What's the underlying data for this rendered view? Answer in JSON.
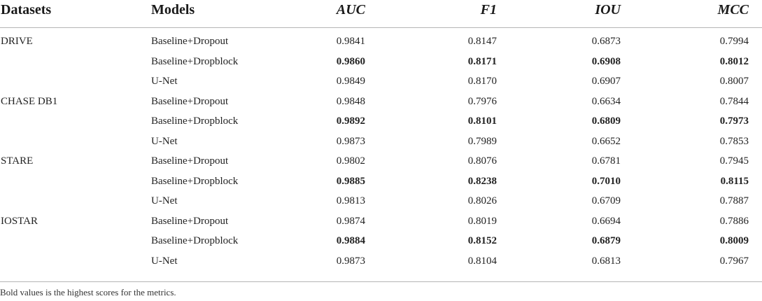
{
  "table": {
    "headers": {
      "datasets": "Datasets",
      "models": "Models",
      "auc": "AUC",
      "f1": "F1",
      "iou": "IOU",
      "mcc": "MCC"
    },
    "rows": [
      {
        "dataset": "DRIVE",
        "model": "Baseline+Dropout",
        "auc": "0.9841",
        "f1": "0.8147",
        "iou": "0.6873",
        "mcc": "0.7994",
        "bold": false
      },
      {
        "dataset": "",
        "model": "Baseline+Dropblock",
        "auc": "0.9860",
        "f1": "0.8171",
        "iou": "0.6908",
        "mcc": "0.8012",
        "bold": true
      },
      {
        "dataset": "",
        "model": "U-Net",
        "auc": "0.9849",
        "f1": "0.8170",
        "iou": "0.6907",
        "mcc": "0.8007",
        "bold": false
      },
      {
        "dataset": "CHASE DB1",
        "model": "Baseline+Dropout",
        "auc": "0.9848",
        "f1": "0.7976",
        "iou": "0.6634",
        "mcc": "0.7844",
        "bold": false
      },
      {
        "dataset": "",
        "model": "Baseline+Dropblock",
        "auc": "0.9892",
        "f1": "0.8101",
        "iou": "0.6809",
        "mcc": "0.7973",
        "bold": true
      },
      {
        "dataset": "",
        "model": "U-Net",
        "auc": "0.9873",
        "f1": "0.7989",
        "iou": "0.6652",
        "mcc": "0.7853",
        "bold": false
      },
      {
        "dataset": "STARE",
        "model": "Baseline+Dropout",
        "auc": "0.9802",
        "f1": "0.8076",
        "iou": "0.6781",
        "mcc": "0.7945",
        "bold": false
      },
      {
        "dataset": "",
        "model": "Baseline+Dropblock",
        "auc": "0.9885",
        "f1": "0.8238",
        "iou": "0.7010",
        "mcc": "0.8115",
        "bold": true
      },
      {
        "dataset": "",
        "model": "U-Net",
        "auc": "0.9813",
        "f1": "0.8026",
        "iou": "0.6709",
        "mcc": "0.7887",
        "bold": false
      },
      {
        "dataset": "IOSTAR",
        "model": "Baseline+Dropout",
        "auc": "0.9874",
        "f1": "0.8019",
        "iou": "0.6694",
        "mcc": "0.7886",
        "bold": false
      },
      {
        "dataset": "",
        "model": "Baseline+Dropblock",
        "auc": "0.9884",
        "f1": "0.8152",
        "iou": "0.6879",
        "mcc": "0.8009",
        "bold": true
      },
      {
        "dataset": "",
        "model": "U-Net",
        "auc": "0.9873",
        "f1": "0.8104",
        "iou": "0.6813",
        "mcc": "0.7967",
        "bold": false
      }
    ]
  },
  "footnote": "Bold values is the highest scores for the metrics."
}
